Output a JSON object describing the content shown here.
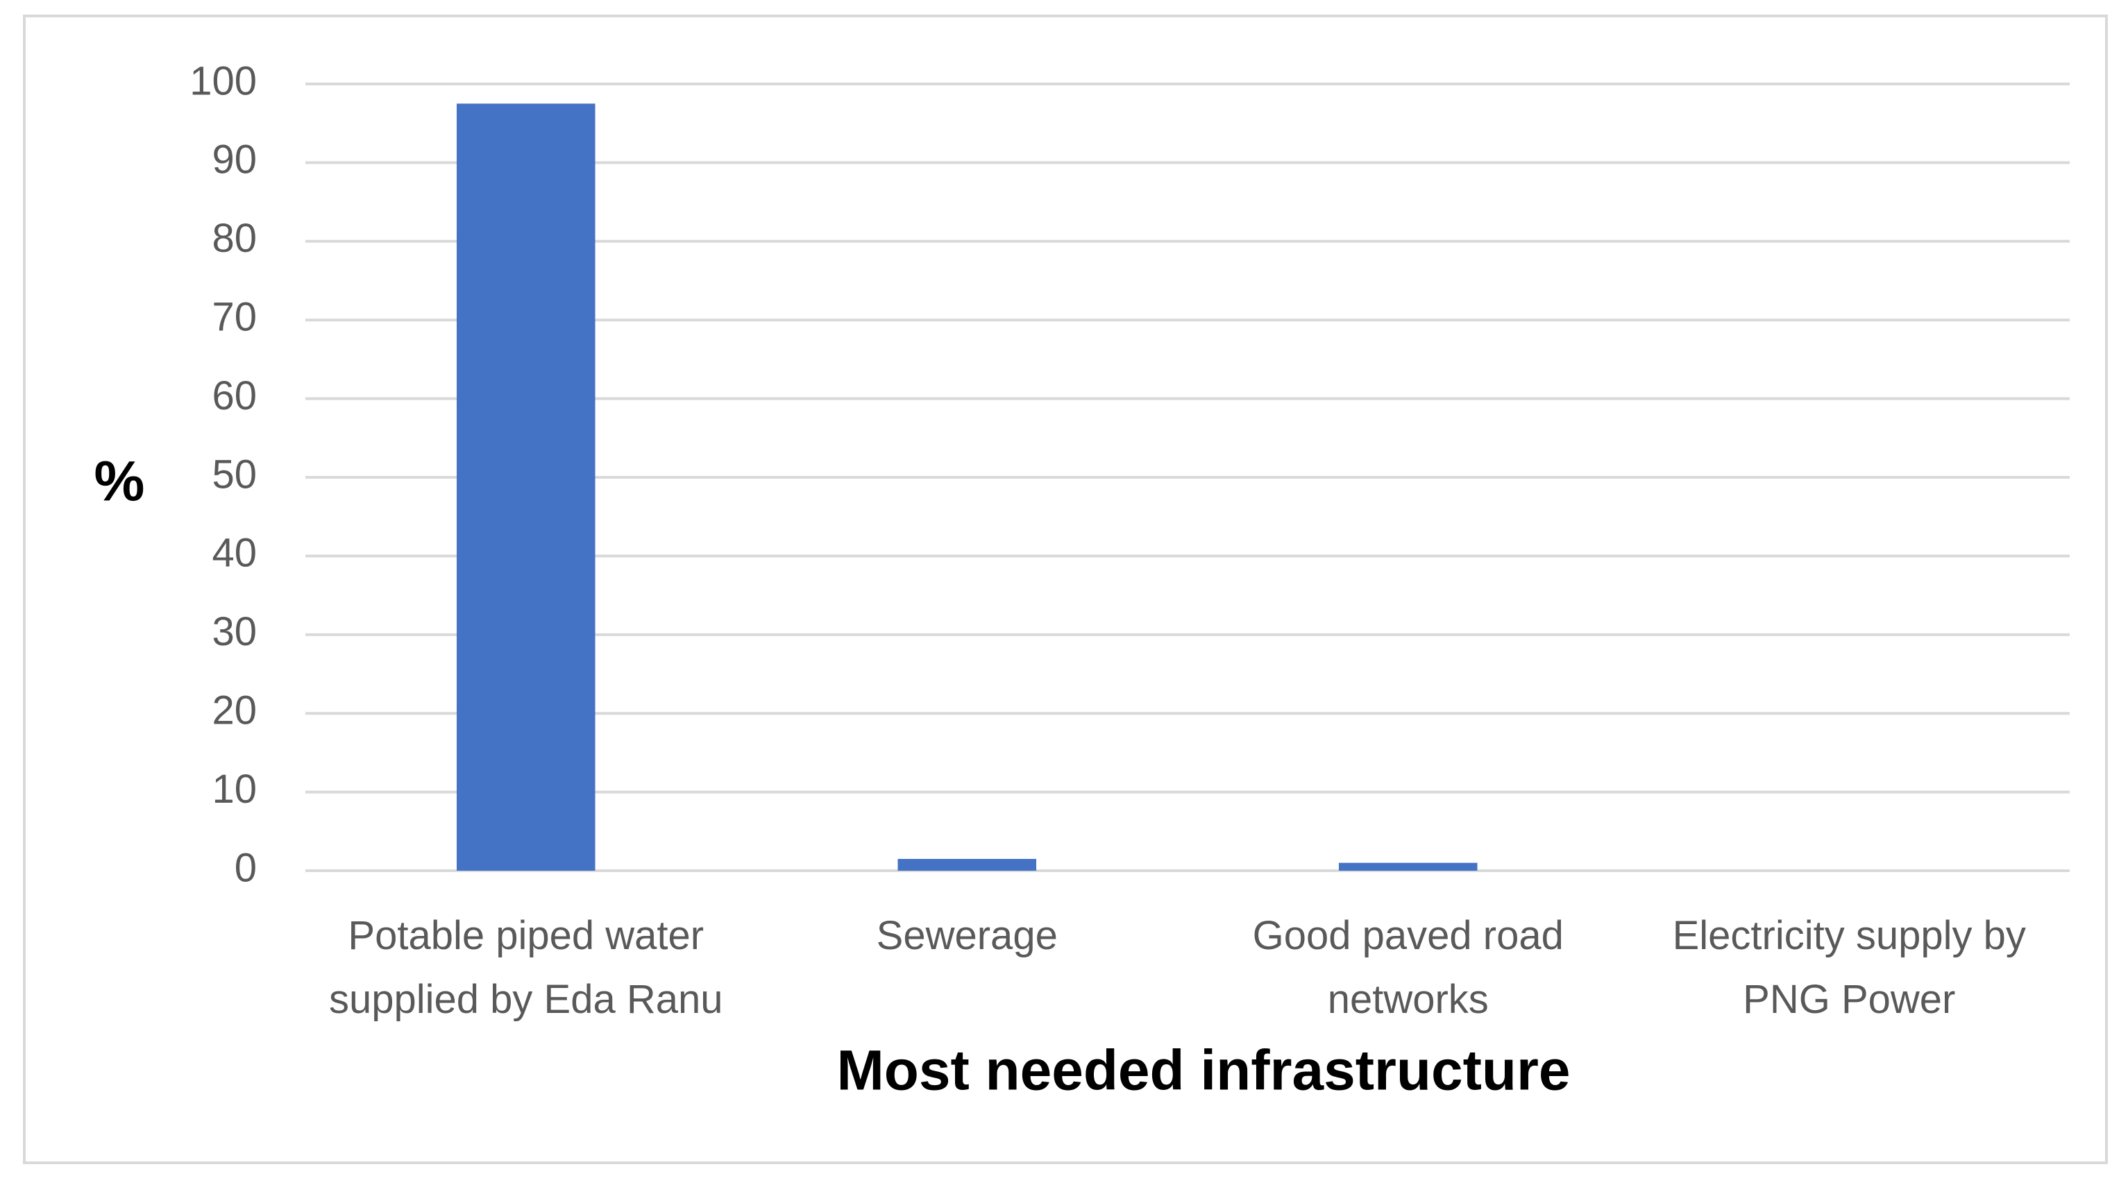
{
  "chart_data": {
    "type": "bar",
    "categories": [
      "Potable piped water supplied by Eda Ranu",
      "Sewerage",
      "Good paved road networks",
      "Electricity supply by PNG Power"
    ],
    "values": [
      97.5,
      1.5,
      1,
      0
    ],
    "color": "#4472c4",
    "ylim": [
      0,
      100
    ],
    "yticks": [
      0,
      10,
      20,
      30,
      40,
      50,
      60,
      70,
      80,
      90,
      100
    ],
    "grid": true,
    "y_label": "%",
    "x_label": "Most needed infrastructure"
  }
}
